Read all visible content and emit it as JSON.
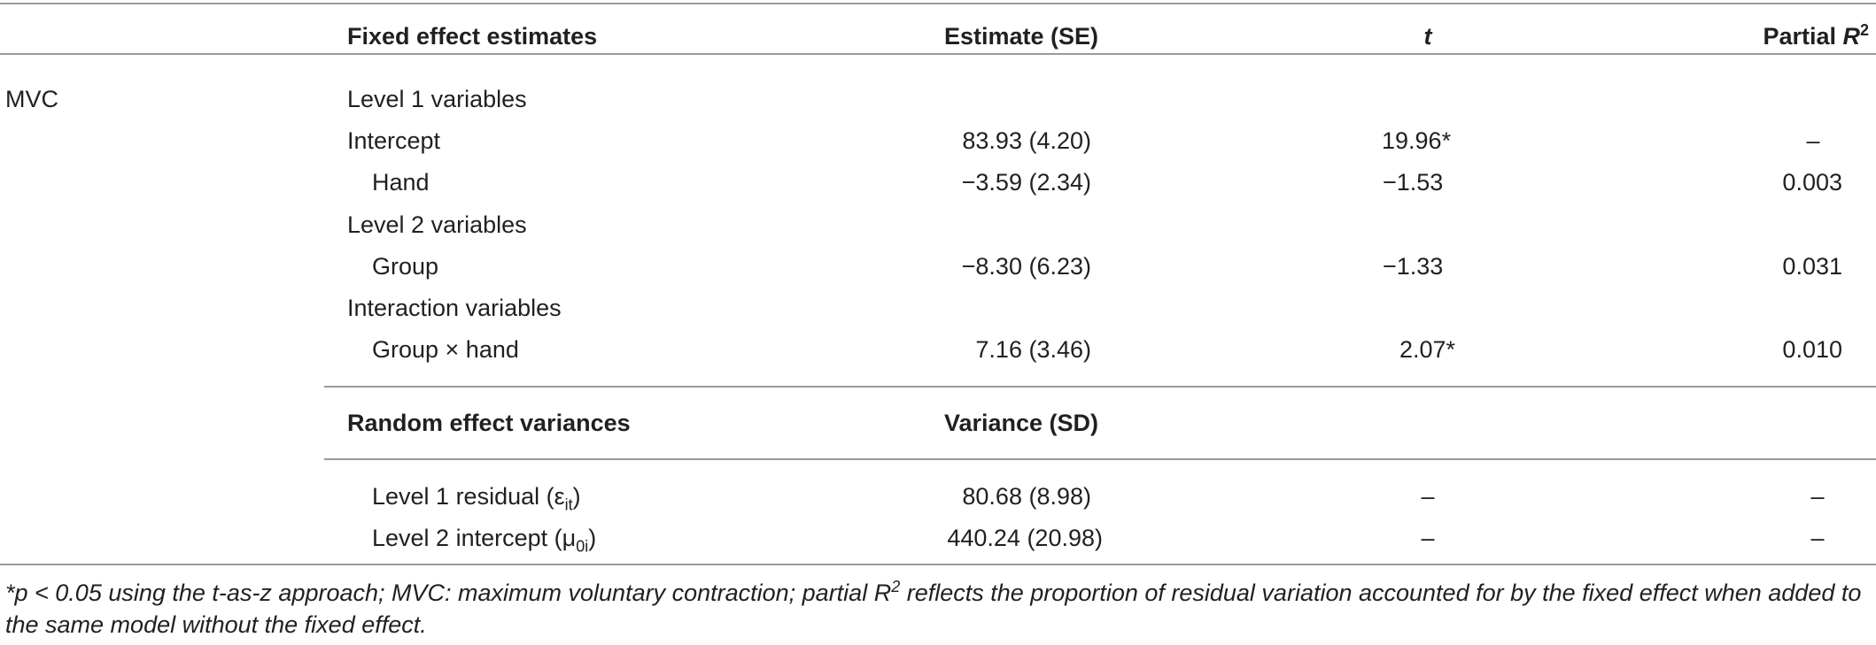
{
  "header": {
    "col_fixed": "Fixed effect estimates",
    "col_estimate": "Estimate (SE)",
    "col_t": "t",
    "col_partial": "Partial ",
    "col_partial_r": "R",
    "col_partial_sup": "2"
  },
  "row_group": "MVC",
  "rows": [
    {
      "label": "Level 1 variables",
      "estimate": "",
      "t": "",
      "r2": ""
    },
    {
      "label": "Intercept",
      "estimate": "83.93 (4.20)",
      "t": "19.96*",
      "r2": "–"
    },
    {
      "label": "Hand",
      "estimate": "−3.59 (2.34)",
      "t": "−1.53",
      "r2": "0.003"
    },
    {
      "label": "Level 2 variables",
      "estimate": "",
      "t": "",
      "r2": ""
    },
    {
      "label": "Group",
      "estimate": "−8.30 (6.23)",
      "t": "−1.33",
      "r2": "0.031"
    },
    {
      "label": "Interaction variables",
      "estimate": "",
      "t": "",
      "r2": ""
    },
    {
      "label": "Group × hand",
      "estimate": "7.16 (3.46)",
      "t": "2.07*",
      "r2": "0.010"
    }
  ],
  "random_header": {
    "col_random": "Random effect variances",
    "col_variance": "Variance (SD)"
  },
  "random_rows": [
    {
      "label": "Level 1 residual (ε",
      "label_sub": "it",
      "label_end": ")",
      "variance": "80.68 (8.98)",
      "t": "–",
      "r2": "–"
    },
    {
      "label": "Level 2 intercept (μ",
      "label_sub": "0i",
      "label_end": ")",
      "variance": "440.24 (20.98)",
      "t": "–",
      "r2": "–"
    }
  ],
  "footnote": {
    "part1": "*p < 0.05 using the t-as-z approach; MVC: maximum voluntary contraction; partial R",
    "sup": "2",
    "part2": " reflects the proportion of residual variation accounted for by the fixed effect when added to the same model without the fixed effect."
  }
}
